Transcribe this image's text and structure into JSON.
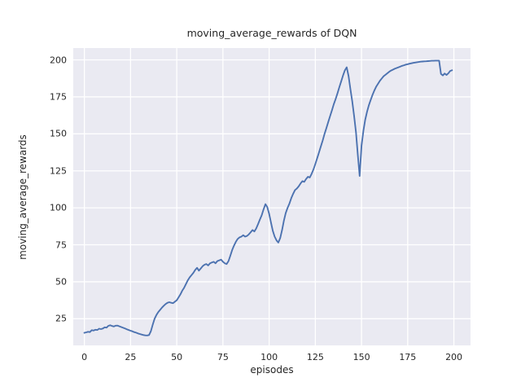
{
  "chart_data": {
    "type": "line",
    "title": "moving_average_rewards of DQN",
    "xlabel": "episodes",
    "ylabel": "moving_average_rewards",
    "x_start": 0,
    "x_step": 1,
    "series": [
      {
        "name": "moving_average_rewards",
        "values": [
          15.5,
          15.8,
          16.2,
          16.0,
          17.3,
          17.0,
          17.6,
          17.4,
          18.3,
          18.0,
          18.4,
          19.2,
          19.0,
          20.2,
          20.6,
          20.1,
          19.8,
          20.3,
          20.4,
          19.9,
          19.4,
          18.9,
          18.4,
          17.9,
          17.4,
          16.9,
          16.5,
          16.0,
          15.6,
          15.1,
          14.7,
          14.3,
          14.0,
          13.8,
          13.7,
          14.0,
          16.5,
          21.0,
          25.0,
          27.5,
          29.5,
          31.0,
          32.5,
          33.8,
          35.0,
          35.8,
          36.2,
          35.8,
          35.5,
          36.5,
          37.5,
          39.5,
          41.5,
          44.0,
          46.0,
          48.5,
          51.0,
          53.0,
          54.5,
          56.0,
          58.0,
          59.5,
          57.5,
          59.0,
          60.5,
          61.5,
          62.0,
          61.0,
          62.5,
          63.0,
          63.5,
          62.5,
          64.0,
          64.5,
          65.0,
          63.5,
          62.5,
          62.0,
          64.0,
          67.5,
          71.5,
          74.5,
          77.0,
          79.0,
          80.0,
          80.5,
          81.5,
          80.5,
          81.0,
          82.0,
          83.5,
          85.0,
          84.0,
          86.0,
          89.0,
          92.0,
          95.0,
          99.0,
          102.5,
          100.5,
          96.0,
          90.0,
          84.5,
          80.5,
          78.0,
          76.5,
          79.5,
          85.0,
          91.5,
          96.5,
          100.0,
          103.0,
          106.5,
          109.5,
          112.0,
          113.0,
          114.5,
          116.5,
          118.0,
          117.5,
          119.5,
          121.0,
          120.5,
          123.0,
          126.0,
          129.5,
          133.5,
          137.5,
          141.5,
          145.5,
          150.0,
          154.0,
          158.0,
          162.0,
          166.0,
          170.0,
          173.5,
          177.5,
          181.5,
          185.5,
          189.5,
          193.0,
          195.0,
          189.0,
          180.0,
          172.0,
          162.0,
          151.0,
          136.0,
          121.5,
          142.0,
          152.0,
          159.5,
          165.0,
          169.5,
          173.0,
          176.5,
          179.5,
          182.0,
          184.0,
          186.0,
          187.5,
          189.0,
          190.0,
          191.0,
          192.0,
          192.8,
          193.4,
          194.0,
          194.5,
          195.0,
          195.5,
          196.0,
          196.4,
          196.8,
          197.1,
          197.4,
          197.7,
          198.0,
          198.2,
          198.4,
          198.6,
          198.8,
          198.9,
          199.0,
          199.1,
          199.2,
          199.3,
          199.4,
          199.4,
          199.5,
          199.5,
          199.5,
          190.5,
          189.5,
          190.8,
          189.8,
          191.0,
          192.5,
          193.0
        ]
      }
    ],
    "xticks": [
      0,
      25,
      50,
      75,
      100,
      125,
      150,
      175,
      200
    ],
    "yticks": [
      25,
      50,
      75,
      100,
      125,
      150,
      175,
      200
    ],
    "xlim": [
      -6,
      209
    ],
    "ylim": [
      7,
      208
    ],
    "grid": true,
    "legend_position": "none",
    "style": "seaborn-darkgrid",
    "colors": {
      "line": "#4c72b0",
      "axes_background": "#eaeaf2",
      "grid": "#ffffff",
      "figure_background": "#ffffff",
      "text": "#262626"
    }
  }
}
